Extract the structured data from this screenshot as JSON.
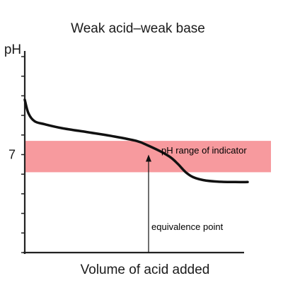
{
  "chart_data": {
    "type": "line",
    "title": "Weak acid–weak base",
    "xlabel": "Volume of acid added",
    "ylabel": "pH",
    "y_tick_labels": [
      {
        "value": 7,
        "label": "7"
      }
    ],
    "ylim": [
      2,
      12
    ],
    "xlim": [
      0,
      10
    ],
    "grid": false,
    "series": [
      {
        "x": [
          0,
          0.15,
          0.4,
          0.8,
          1.5,
          2.5,
          3.5,
          4.5,
          5.0,
          5.5,
          5.9,
          6.2,
          6.5,
          6.8,
          7.2,
          7.8,
          8.5,
          9.0
        ],
        "y": [
          9.8,
          9.1,
          8.7,
          8.55,
          8.35,
          8.15,
          7.95,
          7.7,
          7.45,
          7.15,
          6.85,
          6.5,
          6.1,
          5.85,
          5.7,
          5.62,
          5.6,
          5.6
        ]
      }
    ],
    "band": {
      "label": "pH range of indicator",
      "y_from": 6.1,
      "y_to": 7.7
    },
    "annotations": [
      {
        "text": "equivalence point",
        "x": 5.0,
        "y": 7.0
      }
    ]
  },
  "colors": {
    "band": "#f79a9e",
    "curve": "#111111",
    "axis": "#222222"
  }
}
